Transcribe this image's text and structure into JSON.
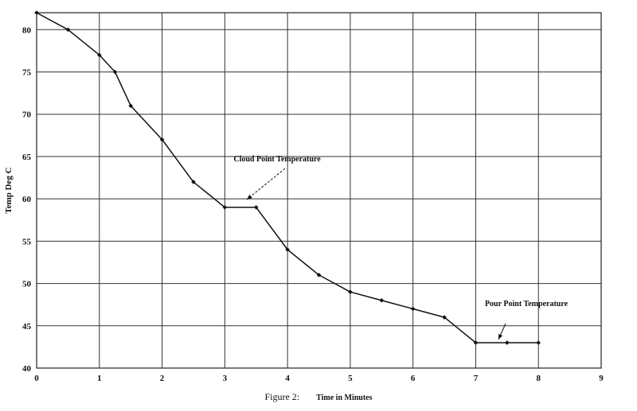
{
  "caption": "Figure 2:",
  "chart_data": {
    "type": "line",
    "xlabel": "Time in Minutes",
    "ylabel": "Temp Deg C",
    "xlim": [
      0,
      9
    ],
    "ylim": [
      40,
      82
    ],
    "x_ticks": [
      0,
      1,
      2,
      3,
      4,
      5,
      6,
      7,
      8,
      9
    ],
    "y_ticks": [
      40,
      45,
      50,
      55,
      60,
      65,
      70,
      75,
      80
    ],
    "grid": true,
    "series": [
      {
        "color": "#111111",
        "x": [
          0,
          0.5,
          1,
          1.25,
          1.5,
          2,
          2.5,
          3,
          3.5,
          4,
          4.5,
          5,
          5.5,
          6,
          6.5,
          7,
          7.5,
          8
        ],
        "y": [
          82,
          80,
          77,
          75,
          71,
          67,
          62,
          59,
          59,
          54,
          51,
          49,
          48,
          47,
          46,
          43,
          43,
          43
        ]
      }
    ],
    "annotations": [
      {
        "text": "Cloud Point Temperature",
        "x": 3.4,
        "y": 59.2
      },
      {
        "text": "Pour Point Temperature",
        "x": 7.35,
        "y": 43.3
      }
    ]
  }
}
